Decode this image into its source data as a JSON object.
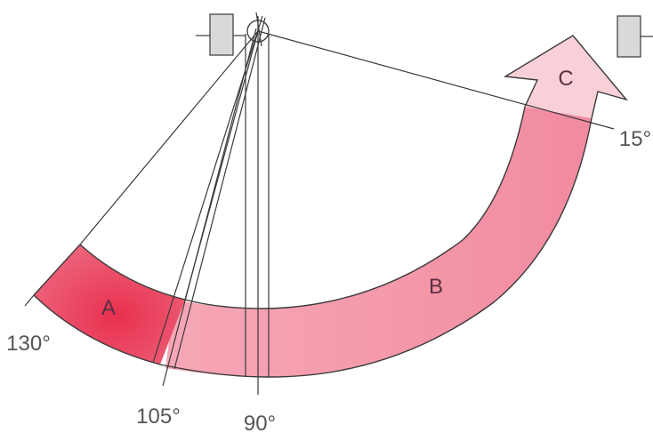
{
  "segments": {
    "a": {
      "label": "A",
      "color": "#e8445e"
    },
    "b": {
      "label": "B",
      "color": "#f59aac"
    },
    "c": {
      "label": "C",
      "color": "#f9d0d8"
    }
  },
  "angles": {
    "a130": "130°",
    "a105": "105°",
    "a90": "90°",
    "a15": "15°"
  },
  "colors": {
    "outline": "#3a3a3a",
    "sensor_fill": "#d9d9d9"
  }
}
